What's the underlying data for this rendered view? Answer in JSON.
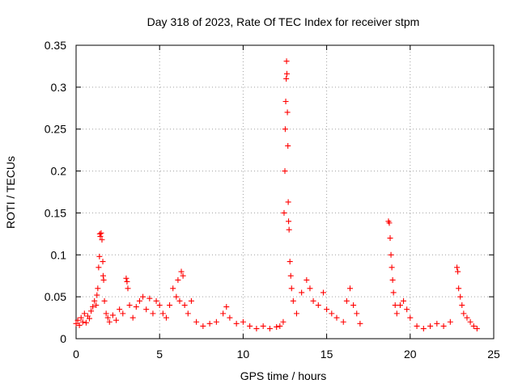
{
  "chart_data": {
    "type": "scatter",
    "title": "Day 318 of 2023, Rate Of TEC Index for receiver stpm",
    "xlabel": "GPS time / hours",
    "ylabel": "ROTI / TECUs",
    "xlim": [
      0,
      25
    ],
    "ylim": [
      0,
      0.35
    ],
    "x_ticks": [
      "0",
      "5",
      "10",
      "15",
      "20",
      "25"
    ],
    "y_ticks": [
      "0",
      "0.05",
      "0.1",
      "0.15",
      "0.2",
      "0.25",
      "0.3",
      "0.35"
    ],
    "grid": true,
    "marker": "+",
    "marker_color": "#ff0000",
    "series": [
      {
        "points": [
          [
            0.0,
            0.018
          ],
          [
            0.1,
            0.022
          ],
          [
            0.2,
            0.016
          ],
          [
            0.3,
            0.025
          ],
          [
            0.4,
            0.02
          ],
          [
            0.5,
            0.03
          ],
          [
            0.6,
            0.019
          ],
          [
            0.7,
            0.027
          ],
          [
            0.8,
            0.024
          ],
          [
            0.9,
            0.033
          ],
          [
            1.0,
            0.038
          ],
          [
            1.1,
            0.045
          ],
          [
            1.2,
            0.04
          ],
          [
            1.25,
            0.052
          ],
          [
            1.3,
            0.06
          ],
          [
            1.35,
            0.085
          ],
          [
            1.4,
            0.098
          ],
          [
            1.42,
            0.125
          ],
          [
            1.45,
            0.122
          ],
          [
            1.5,
            0.126
          ],
          [
            1.55,
            0.118
          ],
          [
            1.6,
            0.092
          ],
          [
            1.62,
            0.075
          ],
          [
            1.65,
            0.07
          ],
          [
            1.7,
            0.045
          ],
          [
            1.8,
            0.03
          ],
          [
            1.9,
            0.025
          ],
          [
            2.0,
            0.02
          ],
          [
            2.2,
            0.028
          ],
          [
            2.4,
            0.022
          ],
          [
            2.6,
            0.035
          ],
          [
            2.8,
            0.03
          ],
          [
            3.0,
            0.072
          ],
          [
            3.05,
            0.068
          ],
          [
            3.1,
            0.06
          ],
          [
            3.2,
            0.04
          ],
          [
            3.4,
            0.025
          ],
          [
            3.6,
            0.038
          ],
          [
            3.8,
            0.045
          ],
          [
            4.0,
            0.05
          ],
          [
            4.2,
            0.035
          ],
          [
            4.4,
            0.048
          ],
          [
            4.6,
            0.03
          ],
          [
            4.8,
            0.045
          ],
          [
            5.0,
            0.04
          ],
          [
            5.2,
            0.03
          ],
          [
            5.4,
            0.025
          ],
          [
            5.6,
            0.04
          ],
          [
            5.8,
            0.06
          ],
          [
            6.0,
            0.05
          ],
          [
            6.1,
            0.07
          ],
          [
            6.2,
            0.045
          ],
          [
            6.3,
            0.08
          ],
          [
            6.4,
            0.075
          ],
          [
            6.5,
            0.04
          ],
          [
            6.7,
            0.03
          ],
          [
            6.9,
            0.045
          ],
          [
            7.2,
            0.02
          ],
          [
            7.6,
            0.015
          ],
          [
            8.0,
            0.018
          ],
          [
            8.4,
            0.02
          ],
          [
            8.8,
            0.03
          ],
          [
            9.0,
            0.038
          ],
          [
            9.2,
            0.025
          ],
          [
            9.6,
            0.018
          ],
          [
            10.0,
            0.02
          ],
          [
            10.4,
            0.015
          ],
          [
            10.8,
            0.012
          ],
          [
            11.2,
            0.015
          ],
          [
            11.6,
            0.012
          ],
          [
            12.0,
            0.014
          ],
          [
            12.2,
            0.015
          ],
          [
            12.4,
            0.02
          ],
          [
            12.45,
            0.15
          ],
          [
            12.5,
            0.2
          ],
          [
            12.52,
            0.25
          ],
          [
            12.55,
            0.283
          ],
          [
            12.58,
            0.31
          ],
          [
            12.6,
            0.331
          ],
          [
            12.62,
            0.316
          ],
          [
            12.65,
            0.27
          ],
          [
            12.68,
            0.23
          ],
          [
            12.7,
            0.163
          ],
          [
            12.72,
            0.14
          ],
          [
            12.75,
            0.13
          ],
          [
            12.8,
            0.092
          ],
          [
            12.85,
            0.075
          ],
          [
            12.9,
            0.06
          ],
          [
            13.0,
            0.045
          ],
          [
            13.2,
            0.03
          ],
          [
            13.5,
            0.055
          ],
          [
            13.8,
            0.07
          ],
          [
            14.0,
            0.06
          ],
          [
            14.2,
            0.045
          ],
          [
            14.5,
            0.04
          ],
          [
            14.8,
            0.055
          ],
          [
            15.0,
            0.035
          ],
          [
            15.3,
            0.03
          ],
          [
            15.6,
            0.025
          ],
          [
            16.0,
            0.02
          ],
          [
            16.2,
            0.045
          ],
          [
            16.4,
            0.06
          ],
          [
            16.6,
            0.04
          ],
          [
            16.8,
            0.03
          ],
          [
            17.0,
            0.018
          ],
          [
            18.7,
            0.14
          ],
          [
            18.75,
            0.138
          ],
          [
            18.8,
            0.12
          ],
          [
            18.85,
            0.1
          ],
          [
            18.9,
            0.085
          ],
          [
            18.95,
            0.07
          ],
          [
            19.0,
            0.055
          ],
          [
            19.1,
            0.04
          ],
          [
            19.2,
            0.03
          ],
          [
            19.4,
            0.04
          ],
          [
            19.6,
            0.045
          ],
          [
            19.8,
            0.035
          ],
          [
            20.0,
            0.025
          ],
          [
            20.4,
            0.015
          ],
          [
            20.8,
            0.012
          ],
          [
            21.2,
            0.015
          ],
          [
            21.6,
            0.018
          ],
          [
            22.0,
            0.015
          ],
          [
            22.4,
            0.02
          ],
          [
            22.8,
            0.085
          ],
          [
            22.85,
            0.08
          ],
          [
            22.9,
            0.06
          ],
          [
            23.0,
            0.05
          ],
          [
            23.1,
            0.04
          ],
          [
            23.2,
            0.03
          ],
          [
            23.4,
            0.025
          ],
          [
            23.6,
            0.02
          ],
          [
            23.8,
            0.015
          ],
          [
            24.0,
            0.012
          ]
        ]
      }
    ]
  }
}
